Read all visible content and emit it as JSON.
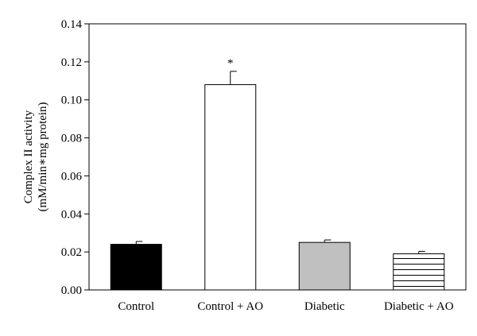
{
  "chart_data": {
    "type": "bar",
    "categories": [
      "Control",
      "Control + AO",
      "Diabetic",
      "Diabetic + AO"
    ],
    "values": [
      0.024,
      0.108,
      0.025,
      0.019
    ],
    "errors": [
      0.0015,
      0.007,
      0.0013,
      0.0013
    ],
    "ylabel_line1": "Complex II activity",
    "ylabel_line2": "(mM/min∗mg protein)",
    "ylim": [
      0,
      0.14
    ],
    "yticks": [
      "0.00",
      "0.02",
      "0.04",
      "0.06",
      "0.08",
      "0.10",
      "0.12",
      "0.14"
    ],
    "ytick_values": [
      0,
      0.02,
      0.04,
      0.06,
      0.08,
      0.1,
      0.12,
      0.14
    ],
    "annotation": {
      "text": "*",
      "category": "Control + AO"
    },
    "bar_fills": [
      "solid-black",
      "white",
      "gray",
      "horizontal-stripes"
    ],
    "colors": {
      "black": "#000000",
      "gray": "#c0c0c0",
      "white": "#ffffff"
    },
    "grid": false,
    "legend": "none"
  }
}
